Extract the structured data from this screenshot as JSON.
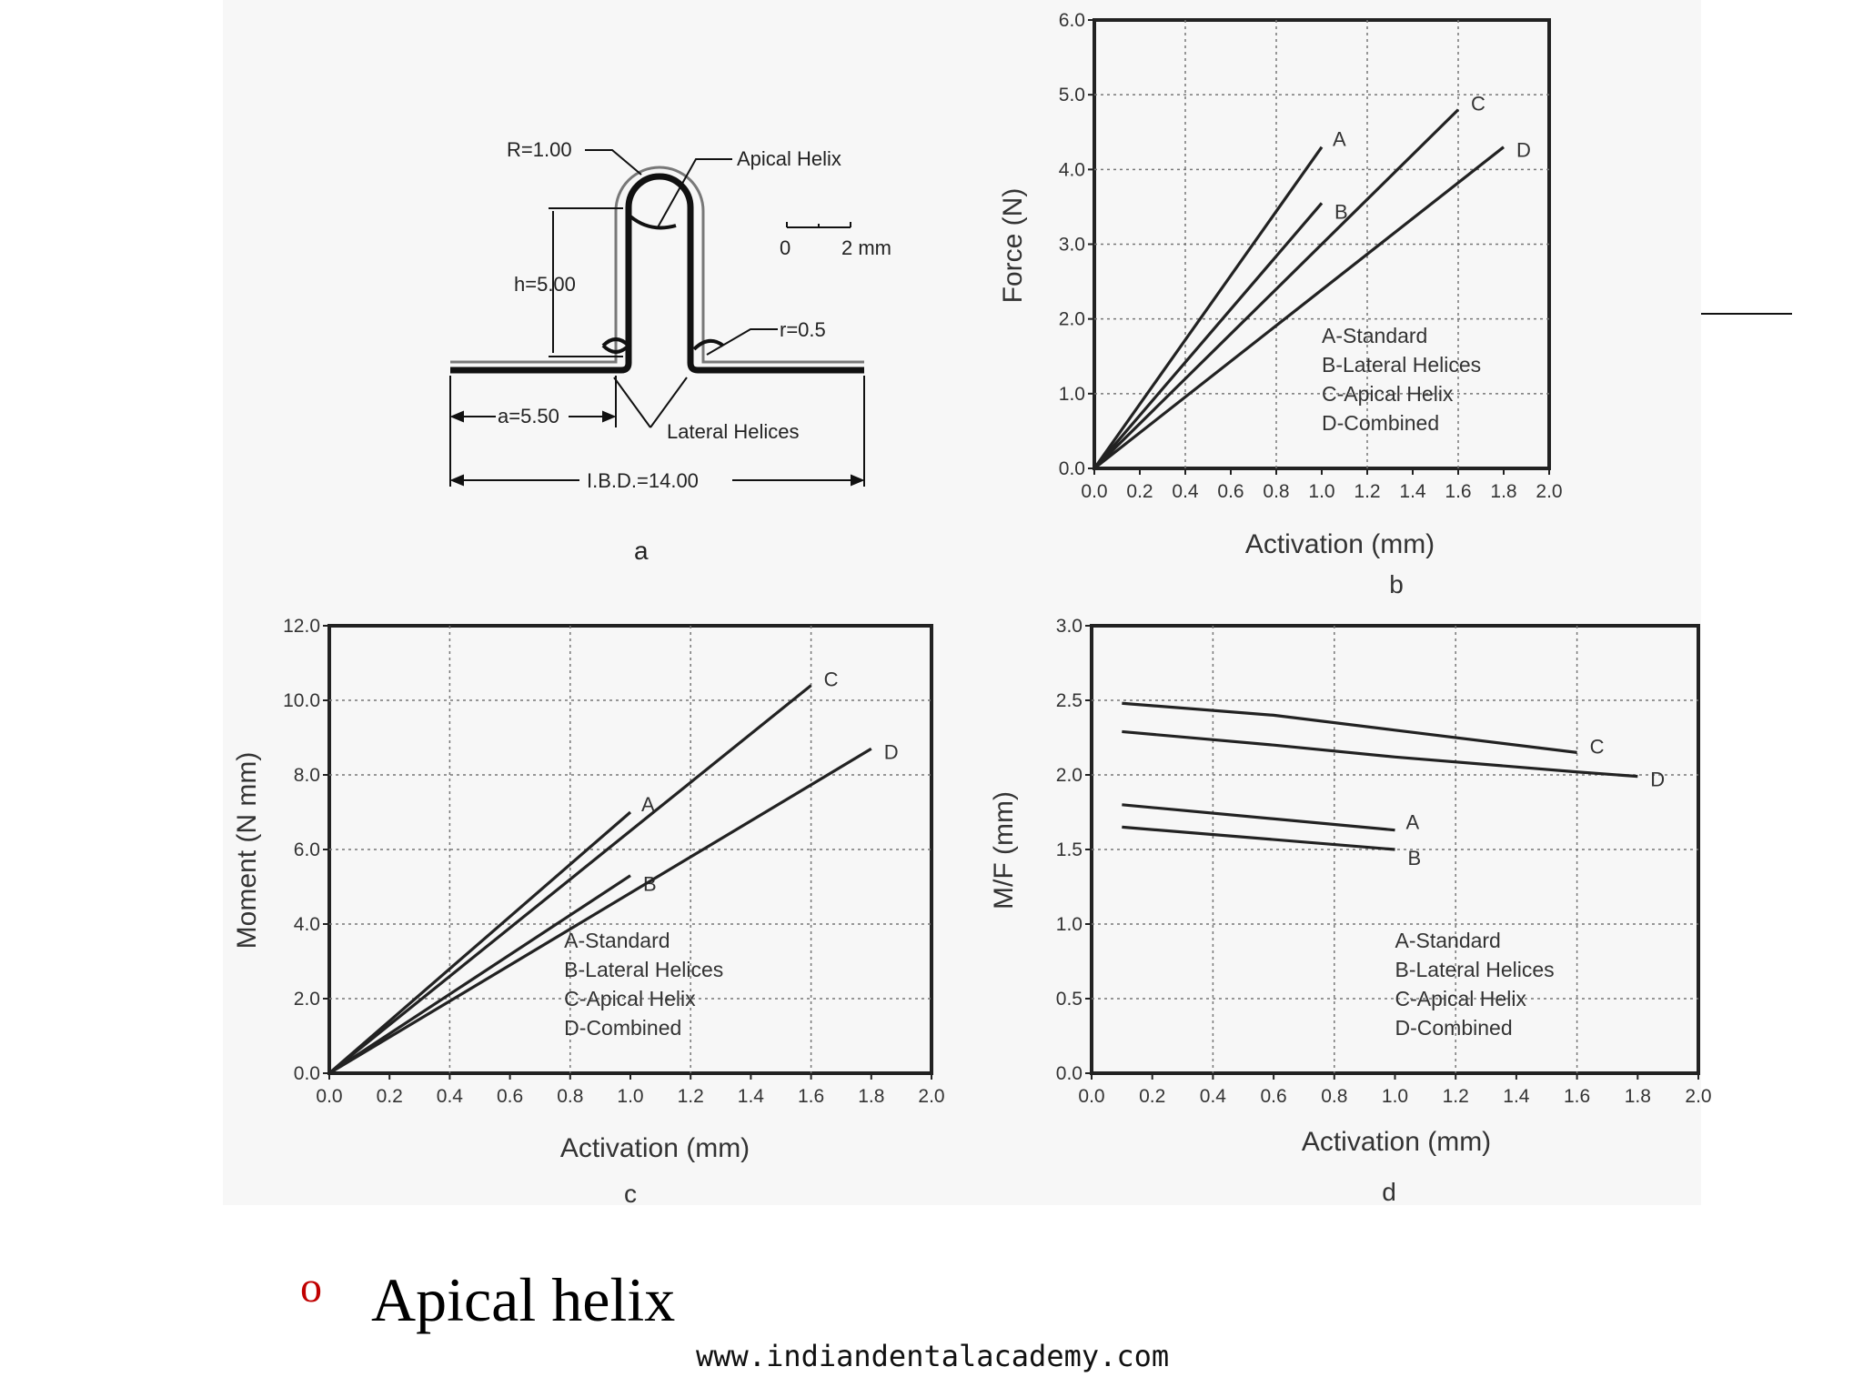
{
  "slide": {
    "bullet_glyph": "o",
    "heading": "Apical helix",
    "footer_url": "www.indiandentalacademy.com"
  },
  "diagram": {
    "label_R": "R=1.00",
    "label_apical": "Apical Helix",
    "label_h": "h=5.00",
    "label_r": "r=0.5",
    "label_a": "a=5.50",
    "label_lateral": "Lateral Helices",
    "label_ibd": "I.B.D.=14.00",
    "scale_zero": "0",
    "scale_two": "2 mm",
    "panel_letter": "a"
  },
  "chart_data": [
    {
      "type": "line",
      "panel_letter": "b",
      "xlabel": "Activation (mm)",
      "ylabel": "Force (N)",
      "xlim": [
        0,
        2.0
      ],
      "ylim": [
        0,
        6.0
      ],
      "xticks": [
        "0.0",
        "0.2",
        "0.4",
        "0.6",
        "0.8",
        "1.0",
        "1.2",
        "1.4",
        "1.6",
        "1.8",
        "2.0"
      ],
      "yticks": [
        "0.0",
        "1.0",
        "2.0",
        "3.0",
        "4.0",
        "5.0",
        "6.0"
      ],
      "grid": true,
      "legend": [
        "A-Standard",
        "B-Lateral Helices",
        "C-Apical Helix",
        "D-Combined"
      ],
      "legend_position": "lower-right",
      "series": [
        {
          "name": "A",
          "x": [
            0,
            1.0
          ],
          "y": [
            0,
            4.3
          ]
        },
        {
          "name": "B",
          "x": [
            0,
            1.0
          ],
          "y": [
            0,
            3.55
          ]
        },
        {
          "name": "C",
          "x": [
            0,
            1.6
          ],
          "y": [
            0,
            4.8
          ]
        },
        {
          "name": "D",
          "x": [
            0,
            1.8
          ],
          "y": [
            0,
            4.3
          ]
        }
      ]
    },
    {
      "type": "line",
      "panel_letter": "c",
      "xlabel": "Activation (mm)",
      "ylabel": "Moment (N mm)",
      "xlim": [
        0,
        2.0
      ],
      "ylim": [
        0,
        12.0
      ],
      "xticks": [
        "0.0",
        "0.2",
        "0.4",
        "0.6",
        "0.8",
        "1.0",
        "1.2",
        "1.4",
        "1.6",
        "1.8",
        "2.0"
      ],
      "yticks": [
        "0.0",
        "2.0",
        "4.0",
        "6.0",
        "8.0",
        "10.0",
        "12.0"
      ],
      "grid": true,
      "legend": [
        "A-Standard",
        "B-Lateral Helices",
        "C-Apical Helix",
        "D-Combined"
      ],
      "legend_position": "lower-right",
      "series": [
        {
          "name": "A",
          "x": [
            0,
            1.0
          ],
          "y": [
            0,
            7.0
          ]
        },
        {
          "name": "B",
          "x": [
            0,
            1.0
          ],
          "y": [
            0,
            5.3
          ]
        },
        {
          "name": "C",
          "x": [
            0,
            1.6
          ],
          "y": [
            0,
            10.4
          ]
        },
        {
          "name": "D",
          "x": [
            0,
            1.8
          ],
          "y": [
            0,
            8.7
          ]
        }
      ]
    },
    {
      "type": "line",
      "panel_letter": "d",
      "xlabel": "Activation (mm)",
      "ylabel": "M/F (mm)",
      "xlim": [
        0,
        2.0
      ],
      "ylim": [
        0,
        3.0
      ],
      "xticks": [
        "0.0",
        "0.2",
        "0.4",
        "0.6",
        "0.8",
        "1.0",
        "1.2",
        "1.4",
        "1.6",
        "1.8",
        "2.0"
      ],
      "yticks": [
        "0.0",
        "0.5",
        "1.0",
        "1.5",
        "2.0",
        "2.5",
        "3.0"
      ],
      "grid": true,
      "legend": [
        "A-Standard",
        "B-Lateral Helices",
        "C-Apical Helix",
        "D-Combined"
      ],
      "legend_position": "lower-right",
      "series": [
        {
          "name": "A",
          "x": [
            0.1,
            1.0
          ],
          "y": [
            1.8,
            1.63
          ]
        },
        {
          "name": "B",
          "x": [
            0.1,
            1.0
          ],
          "y": [
            1.65,
            1.5
          ]
        },
        {
          "name": "C",
          "x": [
            0.1,
            0.6,
            1.0,
            1.6
          ],
          "y": [
            2.48,
            2.4,
            2.3,
            2.15
          ]
        },
        {
          "name": "D",
          "x": [
            0.1,
            0.6,
            1.0,
            1.6,
            1.8
          ],
          "y": [
            2.29,
            2.2,
            2.12,
            2.02,
            1.99
          ]
        }
      ]
    }
  ]
}
